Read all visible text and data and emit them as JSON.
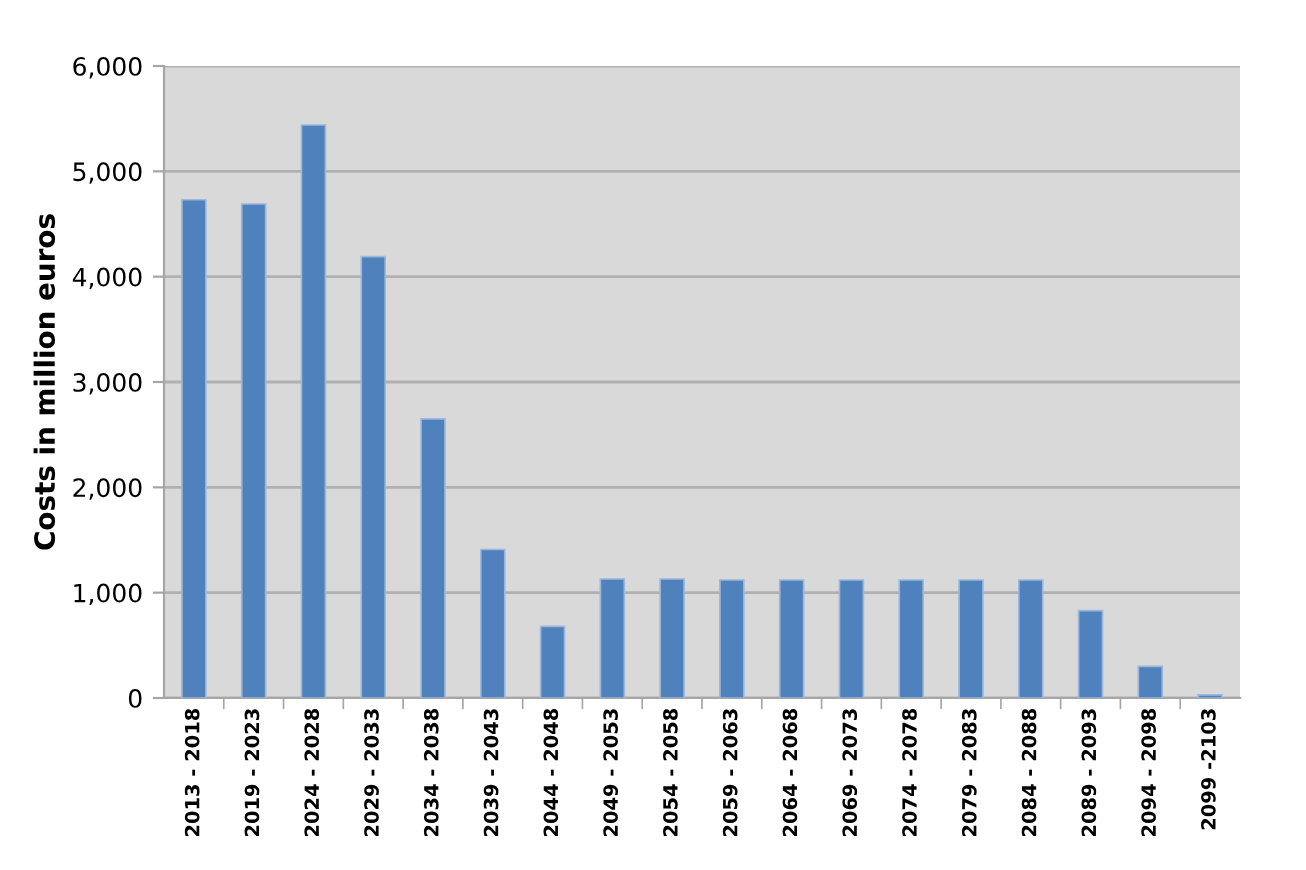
{
  "chart_data": {
    "type": "bar",
    "ylabel": "Costs in million euros",
    "categories": [
      "2013 - 2018",
      "2019 - 2023",
      "2024 - 2028",
      "2029 - 2033",
      "2034 - 2038",
      "2039 - 2043",
      "2044 - 2048",
      "2049 - 2053",
      "2054 - 2058",
      "2059 - 2063",
      "2064 - 2068",
      "2069 - 2073",
      "2074 - 2078",
      "2079 - 2083",
      "2084 - 2088",
      "2089 - 2093",
      "2094 - 2098",
      "2099 -2103"
    ],
    "values": [
      4730,
      4690,
      5440,
      4190,
      2650,
      1410,
      680,
      1130,
      1130,
      1120,
      1120,
      1120,
      1120,
      1120,
      1120,
      830,
      300,
      30
    ],
    "color": "#4f81bd",
    "ylim": [
      0,
      6000
    ],
    "yticks": [
      {
        "value": 0,
        "label": "0"
      },
      {
        "value": 1000,
        "label": "1,000"
      },
      {
        "value": 2000,
        "label": "2,000"
      },
      {
        "value": 3000,
        "label": "3,000"
      },
      {
        "value": 4000,
        "label": "4,000"
      },
      {
        "value": 5000,
        "label": "5,000"
      },
      {
        "value": 6000,
        "label": "6,000"
      }
    ],
    "grid": "y"
  }
}
